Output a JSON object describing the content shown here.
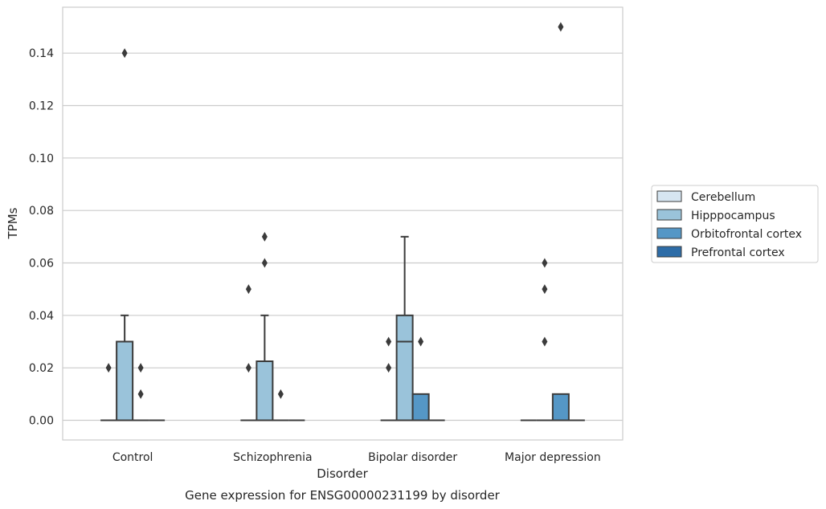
{
  "chart_data": {
    "type": "box",
    "title": "",
    "caption": "Gene expression for ENSG00000231199 by disorder",
    "xlabel": "Disorder",
    "ylabel": "TPMs",
    "ylim": [
      -0.0075,
      0.1575
    ],
    "yticks": [
      "0.00",
      "0.02",
      "0.04",
      "0.06",
      "0.08",
      "0.10",
      "0.12",
      "0.14"
    ],
    "grid": "horizontal",
    "legend_position": "right",
    "categories": [
      "Control",
      "Schizophrenia",
      "Bipolar disorder",
      "Major depression"
    ],
    "series": [
      {
        "name": "Cerebellum",
        "color": "#d6e5f1",
        "boxes": [
          {
            "q1": 0,
            "median": 0,
            "q3": 0,
            "whisker_low": 0,
            "whisker_high": 0,
            "outliers": [
              0.02
            ]
          },
          {
            "q1": 0,
            "median": 0,
            "q3": 0,
            "whisker_low": 0,
            "whisker_high": 0,
            "outliers": [
              0.05,
              0.02
            ]
          },
          {
            "q1": 0,
            "median": 0,
            "q3": 0,
            "whisker_low": 0,
            "whisker_high": 0,
            "outliers": [
              0.03,
              0.02
            ]
          },
          {
            "q1": 0,
            "median": 0,
            "q3": 0,
            "whisker_low": 0,
            "whisker_high": 0,
            "outliers": []
          }
        ]
      },
      {
        "name": "Hipppocampus",
        "color": "#9ac3da",
        "boxes": [
          {
            "q1": 0,
            "median": 0,
            "q3": 0.03,
            "whisker_low": 0,
            "whisker_high": 0.04,
            "outliers": [
              0.14
            ]
          },
          {
            "q1": 0,
            "median": 0,
            "q3": 0.0225,
            "whisker_low": 0,
            "whisker_high": 0.04,
            "outliers": [
              0.07,
              0.06
            ]
          },
          {
            "q1": 0,
            "median": 0.03,
            "q3": 0.04,
            "whisker_low": 0,
            "whisker_high": 0.07,
            "outliers": []
          },
          {
            "q1": 0,
            "median": 0,
            "q3": 0,
            "whisker_low": 0,
            "whisker_high": 0,
            "outliers": [
              0.06,
              0.05,
              0.03
            ]
          }
        ]
      },
      {
        "name": "Orbitofrontal cortex",
        "color": "#5597c6",
        "boxes": [
          {
            "q1": 0,
            "median": 0,
            "q3": 0,
            "whisker_low": 0,
            "whisker_high": 0,
            "outliers": [
              0.02,
              0.01
            ]
          },
          {
            "q1": 0,
            "median": 0,
            "q3": 0,
            "whisker_low": 0,
            "whisker_high": 0,
            "outliers": [
              0.01
            ]
          },
          {
            "q1": 0,
            "median": 0,
            "q3": 0.01,
            "whisker_low": 0,
            "whisker_high": 0.01,
            "outliers": [
              0.03
            ]
          },
          {
            "q1": 0,
            "median": 0,
            "q3": 0.01,
            "whisker_low": 0,
            "whisker_high": 0.01,
            "outliers": [
              0.15
            ]
          }
        ]
      },
      {
        "name": "Prefrontal cortex",
        "color": "#2d6ca7",
        "boxes": [
          {
            "q1": 0,
            "median": 0,
            "q3": 0,
            "whisker_low": 0,
            "whisker_high": 0,
            "outliers": []
          },
          {
            "q1": 0,
            "median": 0,
            "q3": 0,
            "whisker_low": 0,
            "whisker_high": 0,
            "outliers": []
          },
          {
            "q1": 0,
            "median": 0,
            "q3": 0,
            "whisker_low": 0,
            "whisker_high": 0,
            "outliers": []
          },
          {
            "q1": 0,
            "median": 0,
            "q3": 0,
            "whisker_low": 0,
            "whisker_high": 0,
            "outliers": []
          }
        ]
      }
    ]
  }
}
